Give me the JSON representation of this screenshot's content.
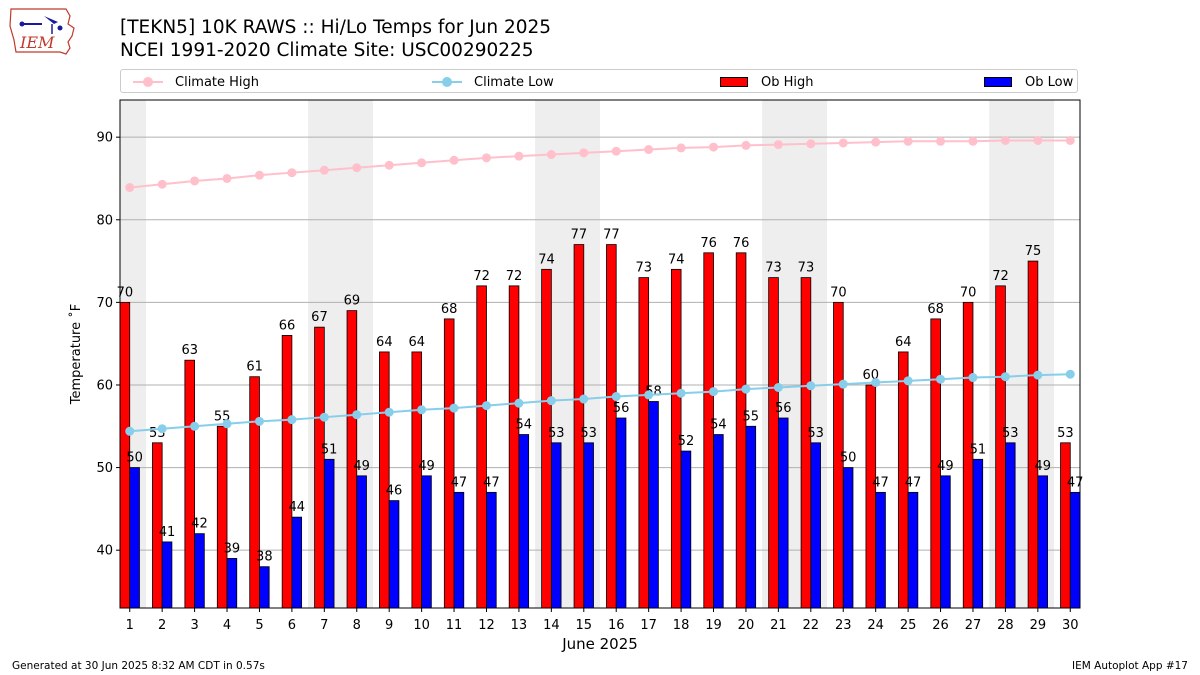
{
  "logo_text": "IEM",
  "title_line1": "[TEKN5] 10K RAWS :: Hi/Lo Temps for Jun 2025",
  "title_line2": "NCEI 1991-2020 Climate Site: USC00290225",
  "footer_left": "Generated at 30 Jun 2025 8:32 AM CDT in 0.57s",
  "footer_right": "IEM Autoplot App #17",
  "legend": [
    {
      "label": "Climate High",
      "kind": "line",
      "color": "#ffc0cb"
    },
    {
      "label": "Climate Low",
      "kind": "line",
      "color": "#87ceeb"
    },
    {
      "label": "Ob High",
      "kind": "bar",
      "color": "#ff0000"
    },
    {
      "label": "Ob Low",
      "kind": "bar",
      "color": "#0000ff"
    }
  ],
  "chart_data": {
    "type": "bar",
    "xlabel": "June 2025",
    "ylabel": "Temperature ˚F",
    "ylim": [
      33,
      94.5
    ],
    "yticks": [
      40,
      50,
      60,
      70,
      80,
      90
    ],
    "grid": true,
    "legend_position": "top",
    "weekend_shading_color": "#eeeeee",
    "shaded_day_pairs": [
      [
        1,
        1
      ],
      [
        7,
        8
      ],
      [
        14,
        15
      ],
      [
        21,
        22
      ],
      [
        28,
        29
      ]
    ],
    "categories": [
      "1",
      "2",
      "3",
      "4",
      "5",
      "6",
      "7",
      "8",
      "9",
      "10",
      "11",
      "12",
      "13",
      "14",
      "15",
      "16",
      "17",
      "18",
      "19",
      "20",
      "21",
      "22",
      "23",
      "24",
      "25",
      "26",
      "27",
      "28",
      "29",
      "30"
    ],
    "series": [
      {
        "name": "Ob High",
        "kind": "bar",
        "color": "#ff0000",
        "values": [
          70,
          53,
          63,
          55,
          61,
          66,
          67,
          69,
          64,
          64,
          68,
          72,
          72,
          74,
          77,
          77,
          73,
          74,
          76,
          76,
          73,
          73,
          70,
          60,
          64,
          68,
          70,
          72,
          75,
          53
        ]
      },
      {
        "name": "Ob Low",
        "kind": "bar",
        "color": "#0000ff",
        "values": [
          50,
          41,
          42,
          39,
          38,
          44,
          51,
          49,
          46,
          49,
          47,
          47,
          54,
          53,
          53,
          56,
          58,
          52,
          54,
          55,
          56,
          53,
          50,
          47,
          47,
          49,
          51,
          53,
          49,
          47
        ]
      },
      {
        "name": "Climate High",
        "kind": "line",
        "color": "#ffc0cb",
        "values": [
          83.9,
          84.3,
          84.7,
          85.0,
          85.4,
          85.7,
          86.0,
          86.3,
          86.6,
          86.9,
          87.2,
          87.5,
          87.7,
          87.9,
          88.1,
          88.3,
          88.5,
          88.7,
          88.8,
          89.0,
          89.1,
          89.2,
          89.3,
          89.4,
          89.5,
          89.5,
          89.5,
          89.6,
          89.6,
          89.6
        ]
      },
      {
        "name": "Climate Low",
        "kind": "line",
        "color": "#87ceeb",
        "values": [
          54.4,
          54.7,
          55.0,
          55.3,
          55.6,
          55.8,
          56.1,
          56.4,
          56.7,
          57.0,
          57.2,
          57.5,
          57.8,
          58.1,
          58.3,
          58.6,
          58.8,
          59.0,
          59.2,
          59.5,
          59.7,
          59.9,
          60.1,
          60.3,
          60.5,
          60.7,
          60.9,
          61.0,
          61.2,
          61.3
        ]
      }
    ]
  }
}
